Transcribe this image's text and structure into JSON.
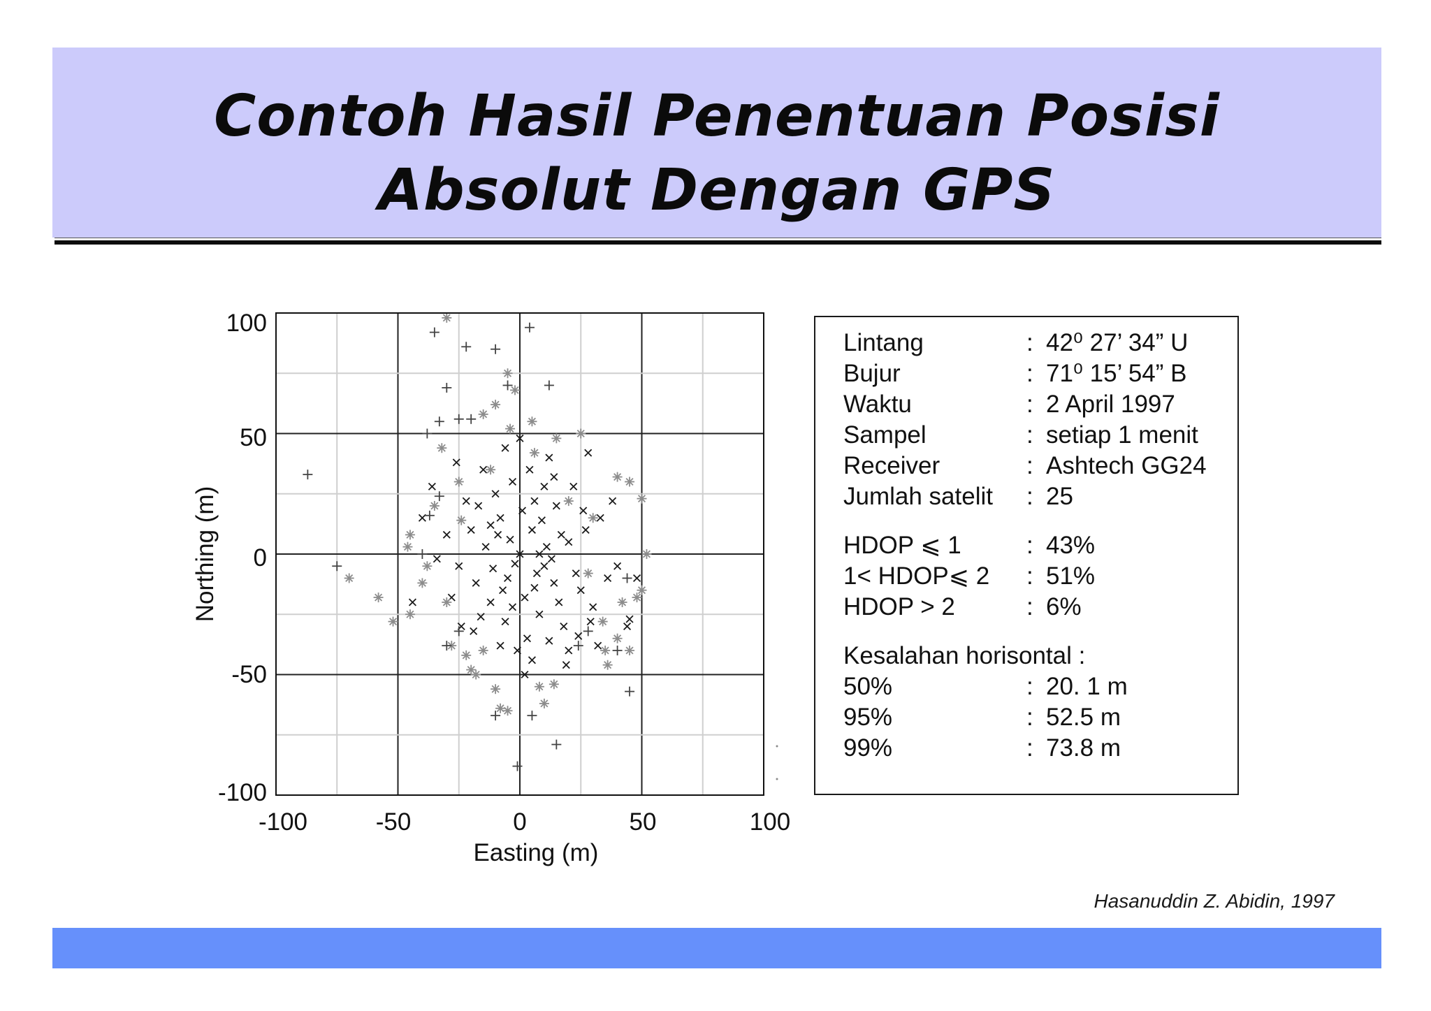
{
  "slide": {
    "title_line1": "Contoh Hasil Penentuan Posisi",
    "title_line2": "Absolut Dengan GPS",
    "credit": "Hasanuddin Z. Abidin, 1997",
    "colors": {
      "title_band": "#cccbfb",
      "footer_band": "#6690fb"
    }
  },
  "info": {
    "rows": [
      {
        "k": "Lintang",
        "c": ":",
        "v": "42⁰ 27’ 34” U"
      },
      {
        "k": "Bujur",
        "c": ":",
        "v": "71⁰ 15’ 54” B"
      },
      {
        "k": "Waktu",
        "c": ":",
        "v": "2 April 1997"
      },
      {
        "k": "Sampel",
        "c": ":",
        "v": "setiap 1 menit"
      },
      {
        "k": "Receiver",
        "c": ":",
        "v": "Ashtech GG24"
      },
      {
        "k": "Jumlah satelit",
        "c": ":",
        "v": "25"
      },
      {
        "k": "HDOP ⩽ 1",
        "c": ":",
        "v": "43%"
      },
      {
        "k": "1< HDOP⩽ 2",
        "c": ":",
        "v": "51%"
      },
      {
        "k": "HDOP > 2",
        "c": ":",
        "v": "6%"
      },
      {
        "k": "Kesalahan horisontal :",
        "c": "",
        "v": ""
      },
      {
        "k": "50%",
        "c": ":",
        "v": "20. 1 m"
      },
      {
        "k": "95%",
        "c": ":",
        "v": "52.5  m"
      },
      {
        "k": "99%",
        "c": ":",
        "v": "73.8  m"
      }
    ]
  },
  "chart_data": {
    "type": "scatter",
    "xlabel": "Easting (m)",
    "ylabel": "Northing (m)",
    "xlim": [
      -100,
      100
    ],
    "ylim": [
      -100,
      100
    ],
    "xticks": [
      "-100",
      "-50",
      "0",
      "50",
      "100"
    ],
    "yticks": [
      "100",
      "50",
      "0",
      "-50",
      "-100"
    ],
    "grid": true,
    "series": [
      {
        "marker": "x",
        "color": "#1a1a1a",
        "points": [
          [
            0,
            0
          ],
          [
            5,
            10
          ],
          [
            -8,
            15
          ],
          [
            10,
            -5
          ],
          [
            -5,
            -10
          ],
          [
            15,
            20
          ],
          [
            -12,
            -20
          ],
          [
            20,
            5
          ],
          [
            -20,
            10
          ],
          [
            8,
            -25
          ],
          [
            -3,
            30
          ],
          [
            25,
            -15
          ],
          [
            -15,
            35
          ],
          [
            12,
            40
          ],
          [
            -25,
            -5
          ],
          [
            3,
            -35
          ],
          [
            18,
            -30
          ],
          [
            -10,
            25
          ],
          [
            6,
            22
          ],
          [
            -6,
            -28
          ],
          [
            22,
            28
          ],
          [
            -18,
            -12
          ],
          [
            14,
            -12
          ],
          [
            -4,
            6
          ],
          [
            9,
            14
          ],
          [
            -14,
            3
          ],
          [
            2,
            -18
          ],
          [
            27,
            10
          ],
          [
            -22,
            22
          ],
          [
            16,
            -20
          ],
          [
            4,
            35
          ],
          [
            -8,
            -38
          ],
          [
            30,
            -22
          ],
          [
            -28,
            -18
          ],
          [
            11,
            3
          ],
          [
            -2,
            -4
          ],
          [
            7,
            -8
          ],
          [
            -9,
            8
          ],
          [
            13,
            -2
          ],
          [
            -16,
            -26
          ],
          [
            20,
            -40
          ],
          [
            -6,
            44
          ],
          [
            33,
            15
          ],
          [
            -30,
            8
          ],
          [
            0,
            48
          ],
          [
            24,
            -34
          ],
          [
            -19,
            -32
          ],
          [
            5,
            -44
          ],
          [
            36,
            -10
          ],
          [
            -34,
            -2
          ],
          [
            10,
            28
          ],
          [
            -12,
            12
          ],
          [
            17,
            8
          ],
          [
            -7,
            -15
          ],
          [
            1,
            18
          ],
          [
            8,
            0
          ],
          [
            -3,
            -22
          ],
          [
            26,
            18
          ],
          [
            -24,
            -30
          ],
          [
            14,
            32
          ],
          [
            40,
            -5
          ],
          [
            -40,
            15
          ],
          [
            28,
            42
          ],
          [
            -26,
            38
          ],
          [
            2,
            -50
          ],
          [
            44,
            -30
          ],
          [
            -44,
            -20
          ],
          [
            48,
            -10
          ],
          [
            45,
            -27
          ],
          [
            32,
            -38
          ],
          [
            -36,
            28
          ],
          [
            19,
            -46
          ],
          [
            38,
            22
          ],
          [
            -1,
            -40
          ],
          [
            23,
            -8
          ],
          [
            -11,
            -6
          ],
          [
            6,
            -14
          ],
          [
            -17,
            20
          ],
          [
            12,
            -36
          ],
          [
            29,
            -28
          ]
        ]
      },
      {
        "marker": "*",
        "color": "#8c8c8c",
        "points": [
          [
            -30,
            98
          ],
          [
            -10,
            62
          ],
          [
            -5,
            75
          ],
          [
            -2,
            68
          ],
          [
            5,
            55
          ],
          [
            15,
            48
          ],
          [
            25,
            50
          ],
          [
            -15,
            58
          ],
          [
            -12,
            35
          ],
          [
            -25,
            30
          ],
          [
            -35,
            20
          ],
          [
            -45,
            8
          ],
          [
            -46,
            3
          ],
          [
            -58,
            -18
          ],
          [
            -70,
            -10
          ],
          [
            -52,
            -28
          ],
          [
            -45,
            -25
          ],
          [
            -40,
            -12
          ],
          [
            -30,
            -20
          ],
          [
            -22,
            -42
          ],
          [
            -18,
            -50
          ],
          [
            -10,
            -56
          ],
          [
            -8,
            -64
          ],
          [
            -5,
            -65
          ],
          [
            8,
            -55
          ],
          [
            14,
            -54
          ],
          [
            35,
            -40
          ],
          [
            40,
            -35
          ],
          [
            36,
            -46
          ],
          [
            42,
            -20
          ],
          [
            48,
            -18
          ],
          [
            50,
            23
          ],
          [
            45,
            30
          ],
          [
            40,
            32
          ],
          [
            52,
            0
          ],
          [
            50,
            -15
          ],
          [
            45,
            -40
          ],
          [
            -20,
            -48
          ],
          [
            -15,
            -40
          ],
          [
            10,
            -62
          ],
          [
            -28,
            -38
          ],
          [
            20,
            22
          ],
          [
            30,
            15
          ],
          [
            -38,
            -5
          ],
          [
            34,
            -28
          ],
          [
            -4,
            52
          ],
          [
            6,
            42
          ],
          [
            -32,
            44
          ],
          [
            28,
            -8
          ],
          [
            -24,
            14
          ]
        ]
      },
      {
        "marker": "+",
        "color": "#444444",
        "points": [
          [
            -87,
            33
          ],
          [
            -35,
            92
          ],
          [
            -22,
            86
          ],
          [
            -10,
            85
          ],
          [
            4,
            94
          ],
          [
            -5,
            70
          ],
          [
            12,
            70
          ],
          [
            -30,
            69
          ],
          [
            -38,
            50
          ],
          [
            -33,
            55
          ],
          [
            -25,
            56
          ],
          [
            -20,
            56
          ],
          [
            -33,
            24
          ],
          [
            -37,
            16
          ],
          [
            -40,
            0
          ],
          [
            -75,
            -5
          ],
          [
            -30,
            -38
          ],
          [
            -25,
            -32
          ],
          [
            -10,
            -67
          ],
          [
            5,
            -67
          ],
          [
            15,
            -79
          ],
          [
            -1,
            -88
          ],
          [
            45,
            -57
          ],
          [
            40,
            -40
          ],
          [
            44,
            -10
          ],
          [
            28,
            -32
          ],
          [
            24,
            -38
          ]
        ]
      }
    ]
  }
}
